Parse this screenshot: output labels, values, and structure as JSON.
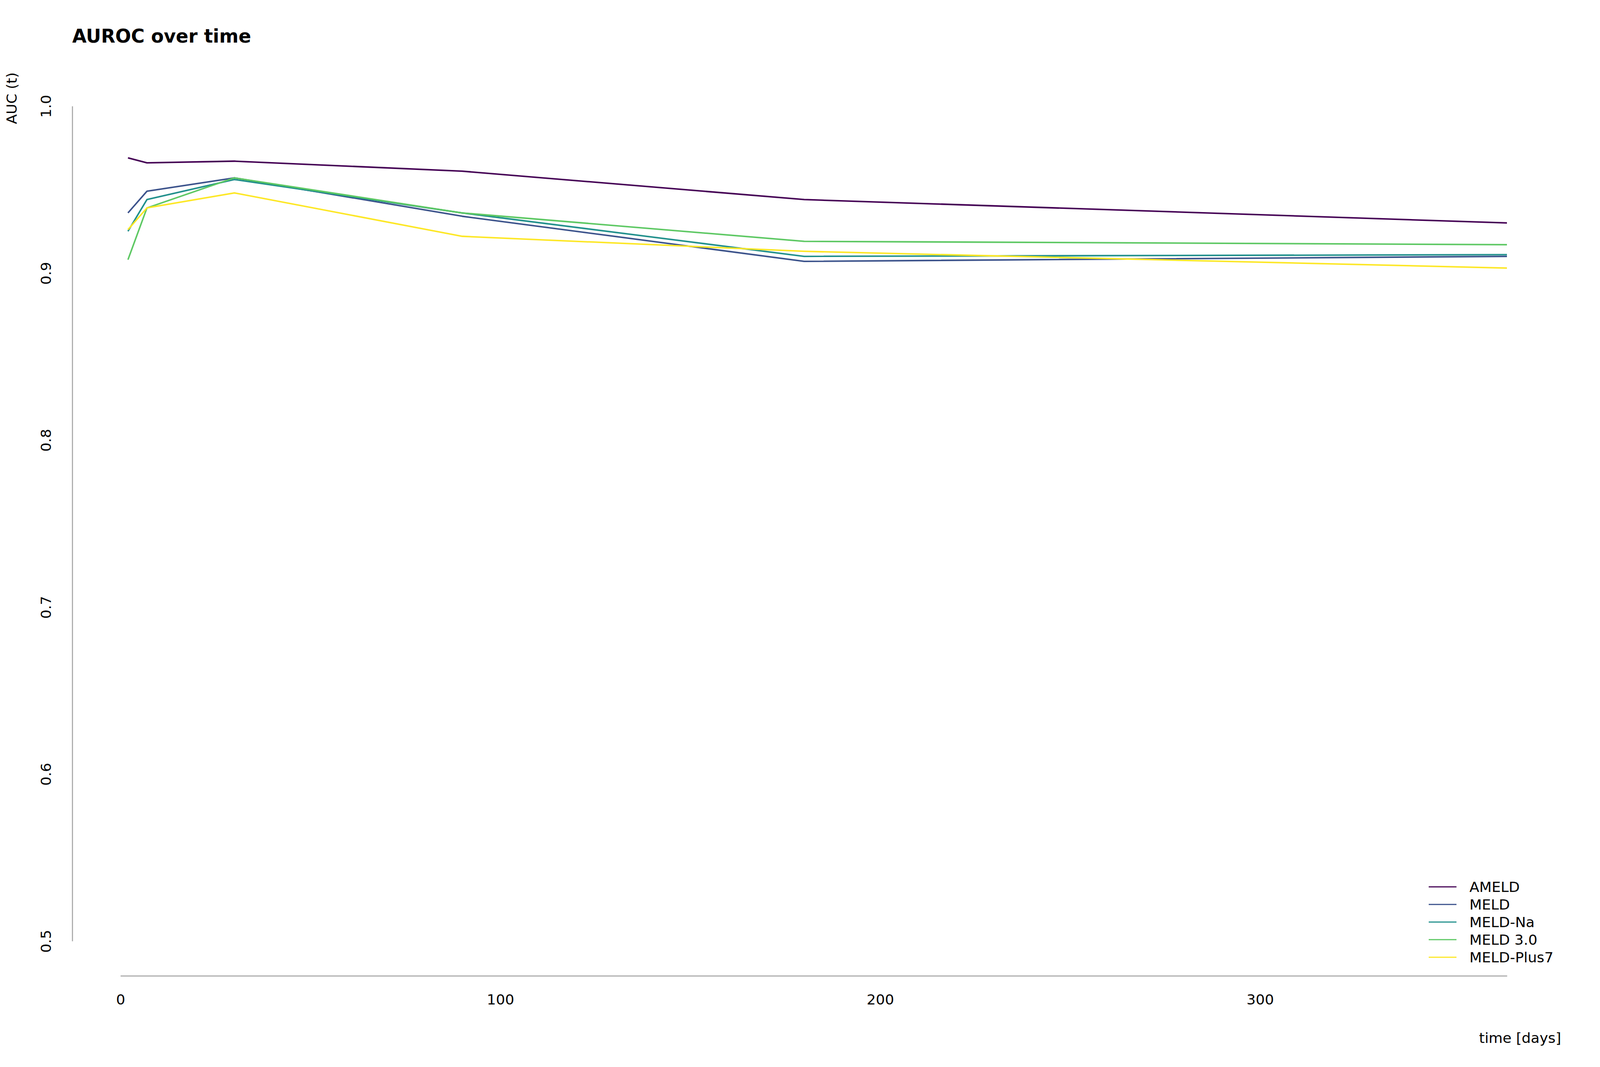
{
  "chart_data": {
    "type": "line",
    "title": "AUROC over time",
    "x_label": "time [days]",
    "y_label": "AUC (t)",
    "x": [
      2,
      7,
      30,
      90,
      180,
      365
    ],
    "xlim": [
      0,
      365
    ],
    "xticks": [
      0,
      100,
      200,
      300
    ],
    "ylim": [
      0.5,
      1.0
    ],
    "yticks": [
      0.5,
      0.6,
      0.7,
      0.8,
      0.9,
      {
        "value": 1.0,
        "label": "1.0"
      }
    ],
    "grid": false,
    "legend": "bottom-right",
    "series": [
      {
        "name": "AMELD",
        "color": "#440154",
        "values": [
          0.969,
          0.966,
          0.967,
          0.961,
          0.944,
          0.93
        ]
      },
      {
        "name": "MELD",
        "color": "#3b528b",
        "values": [
          0.936,
          0.949,
          0.957,
          0.934,
          0.907,
          0.91
        ]
      },
      {
        "name": "MELD-Na",
        "color": "#21908c",
        "values": [
          0.925,
          0.944,
          0.956,
          0.936,
          0.91,
          0.911
        ]
      },
      {
        "name": "MELD 3.0",
        "color": "#5dc863",
        "values": [
          0.908,
          0.939,
          0.957,
          0.936,
          0.919,
          0.917
        ]
      },
      {
        "name": "MELD-Plus7",
        "color": "#fde725",
        "values": [
          0.926,
          0.939,
          0.948,
          0.922,
          0.913,
          0.903
        ]
      }
    ]
  }
}
